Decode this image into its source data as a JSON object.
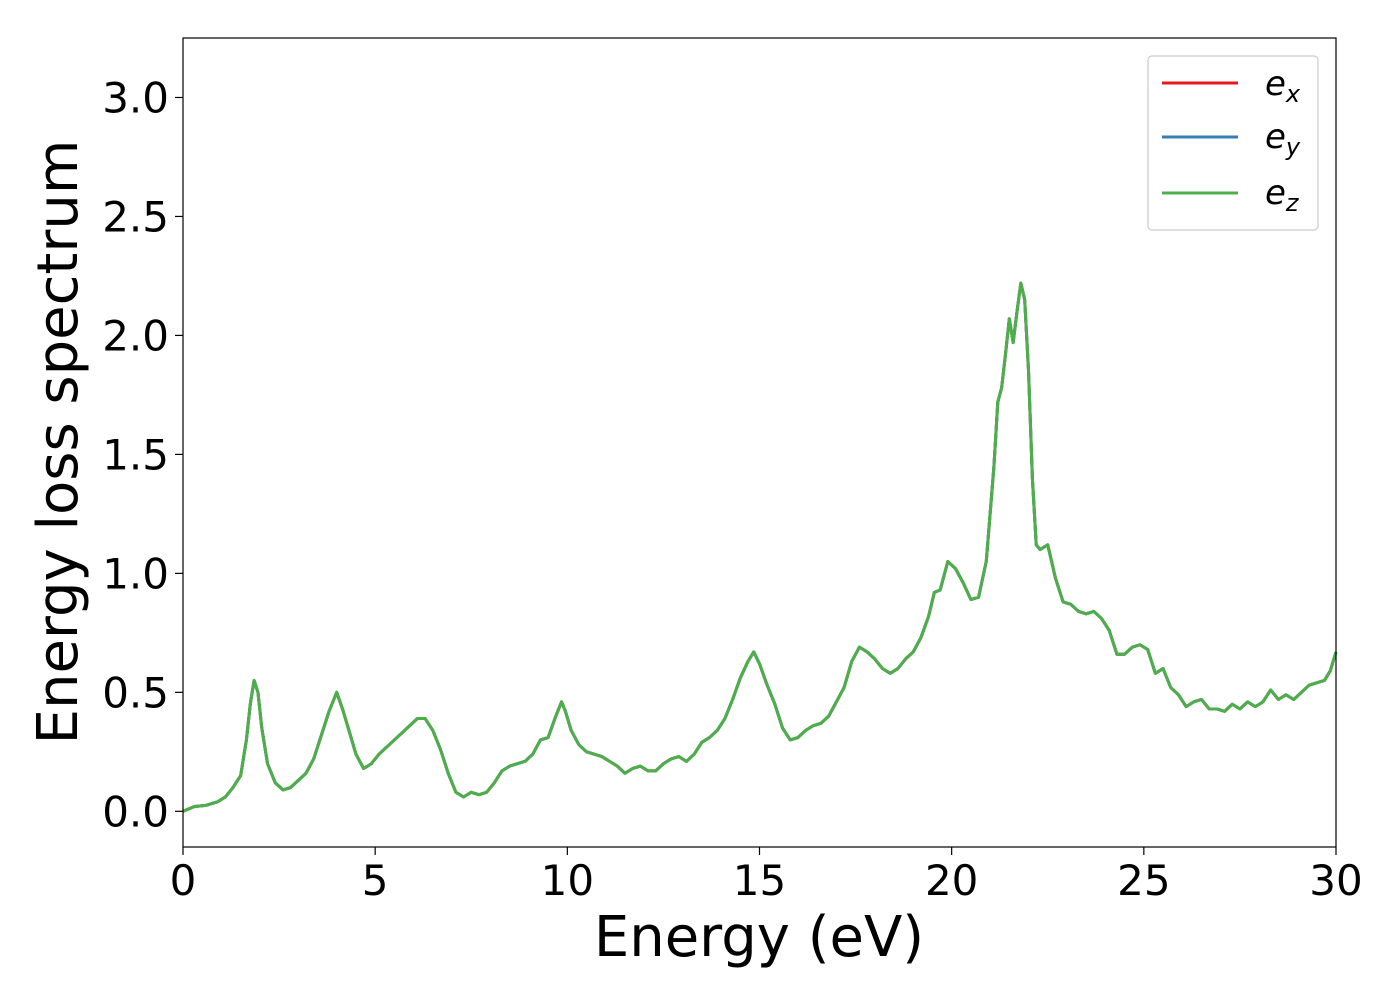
{
  "chart_data": {
    "type": "line",
    "xlabel": "Energy (eV)",
    "ylabel": "Energy loss spectrum",
    "xlim": [
      0,
      30
    ],
    "ylim": [
      -0.15,
      3.25
    ],
    "xticks": [
      0,
      5,
      10,
      15,
      20,
      25,
      30
    ],
    "xtick_labels": [
      "0",
      "5",
      "10",
      "15",
      "20",
      "25",
      "30"
    ],
    "yticks": [
      0.0,
      0.5,
      1.0,
      1.5,
      2.0,
      2.5,
      3.0
    ],
    "ytick_labels": [
      "0.0",
      "0.5",
      "1.0",
      "1.5",
      "2.0",
      "2.5",
      "3.0"
    ],
    "grid": false,
    "legend_position": "top-right",
    "x": [
      0.0,
      0.3,
      0.6,
      0.9,
      1.1,
      1.3,
      1.5,
      1.65,
      1.75,
      1.85,
      1.95,
      2.05,
      2.2,
      2.4,
      2.6,
      2.8,
      3.0,
      3.2,
      3.4,
      3.6,
      3.8,
      4.0,
      4.15,
      4.3,
      4.5,
      4.7,
      4.9,
      5.1,
      5.3,
      5.5,
      5.7,
      5.9,
      6.1,
      6.3,
      6.5,
      6.7,
      6.9,
      7.1,
      7.3,
      7.5,
      7.7,
      7.9,
      8.1,
      8.3,
      8.5,
      8.7,
      8.9,
      9.1,
      9.3,
      9.5,
      9.7,
      9.85,
      9.95,
      10.1,
      10.3,
      10.5,
      10.7,
      10.9,
      11.1,
      11.3,
      11.5,
      11.7,
      11.9,
      12.1,
      12.3,
      12.5,
      12.7,
      12.9,
      13.1,
      13.3,
      13.5,
      13.7,
      13.9,
      14.1,
      14.3,
      14.5,
      14.7,
      14.85,
      15.0,
      15.2,
      15.4,
      15.6,
      15.8,
      16.0,
      16.2,
      16.4,
      16.6,
      16.8,
      17.0,
      17.2,
      17.4,
      17.6,
      17.8,
      18.0,
      18.2,
      18.4,
      18.6,
      18.8,
      19.0,
      19.2,
      19.4,
      19.55,
      19.7,
      19.9,
      20.1,
      20.3,
      20.5,
      20.7,
      20.9,
      21.0,
      21.1,
      21.2,
      21.3,
      21.4,
      21.5,
      21.6,
      21.7,
      21.8,
      21.9,
      22.0,
      22.1,
      22.2,
      22.3,
      22.5,
      22.7,
      22.9,
      23.1,
      23.3,
      23.5,
      23.7,
      23.9,
      24.1,
      24.3,
      24.5,
      24.7,
      24.9,
      25.1,
      25.3,
      25.5,
      25.7,
      25.9,
      26.1,
      26.3,
      26.5,
      26.7,
      26.9,
      27.1,
      27.3,
      27.5,
      27.7,
      27.9,
      28.1,
      28.3,
      28.5,
      28.7,
      28.9,
      29.1,
      29.3,
      29.5,
      29.7,
      29.85,
      30.0
    ],
    "y": [
      0.0,
      0.02,
      0.025,
      0.04,
      0.06,
      0.1,
      0.15,
      0.3,
      0.45,
      0.55,
      0.5,
      0.35,
      0.2,
      0.12,
      0.09,
      0.1,
      0.13,
      0.16,
      0.22,
      0.32,
      0.42,
      0.5,
      0.43,
      0.35,
      0.24,
      0.18,
      0.2,
      0.24,
      0.27,
      0.3,
      0.33,
      0.36,
      0.39,
      0.39,
      0.34,
      0.26,
      0.16,
      0.08,
      0.06,
      0.08,
      0.07,
      0.08,
      0.12,
      0.17,
      0.19,
      0.2,
      0.21,
      0.24,
      0.3,
      0.31,
      0.4,
      0.46,
      0.42,
      0.34,
      0.28,
      0.25,
      0.24,
      0.23,
      0.21,
      0.19,
      0.16,
      0.18,
      0.19,
      0.17,
      0.17,
      0.2,
      0.22,
      0.23,
      0.21,
      0.24,
      0.29,
      0.31,
      0.34,
      0.39,
      0.47,
      0.56,
      0.63,
      0.67,
      0.62,
      0.53,
      0.45,
      0.35,
      0.3,
      0.31,
      0.34,
      0.36,
      0.37,
      0.4,
      0.46,
      0.52,
      0.63,
      0.69,
      0.67,
      0.64,
      0.6,
      0.58,
      0.6,
      0.64,
      0.67,
      0.73,
      0.82,
      0.92,
      0.93,
      1.05,
      1.02,
      0.96,
      0.89,
      0.9,
      1.05,
      1.25,
      1.45,
      1.72,
      1.78,
      1.92,
      2.07,
      1.97,
      2.1,
      2.22,
      2.15,
      1.85,
      1.4,
      1.12,
      1.1,
      1.12,
      0.98,
      0.88,
      0.87,
      0.84,
      0.83,
      0.84,
      0.81,
      0.76,
      0.66,
      0.66,
      0.69,
      0.7,
      0.68,
      0.58,
      0.6,
      0.52,
      0.49,
      0.44,
      0.46,
      0.47,
      0.43,
      0.43,
      0.42,
      0.45,
      0.43,
      0.46,
      0.44,
      0.46,
      0.51,
      0.47,
      0.49,
      0.47,
      0.5,
      0.53,
      0.54,
      0.55,
      0.59,
      0.67
    ],
    "series": [
      {
        "name": "e_x",
        "color": "#e41a1c"
      },
      {
        "name": "e_y",
        "color": "#377eb8"
      },
      {
        "name": "e_z",
        "color": "#4daf4a"
      }
    ]
  },
  "legend": {
    "items": [
      {
        "base": "e",
        "sub": "x",
        "color": "#e41a1c"
      },
      {
        "base": "e",
        "sub": "y",
        "color": "#377eb8"
      },
      {
        "base": "e",
        "sub": "z",
        "color": "#4daf4a"
      }
    ]
  }
}
